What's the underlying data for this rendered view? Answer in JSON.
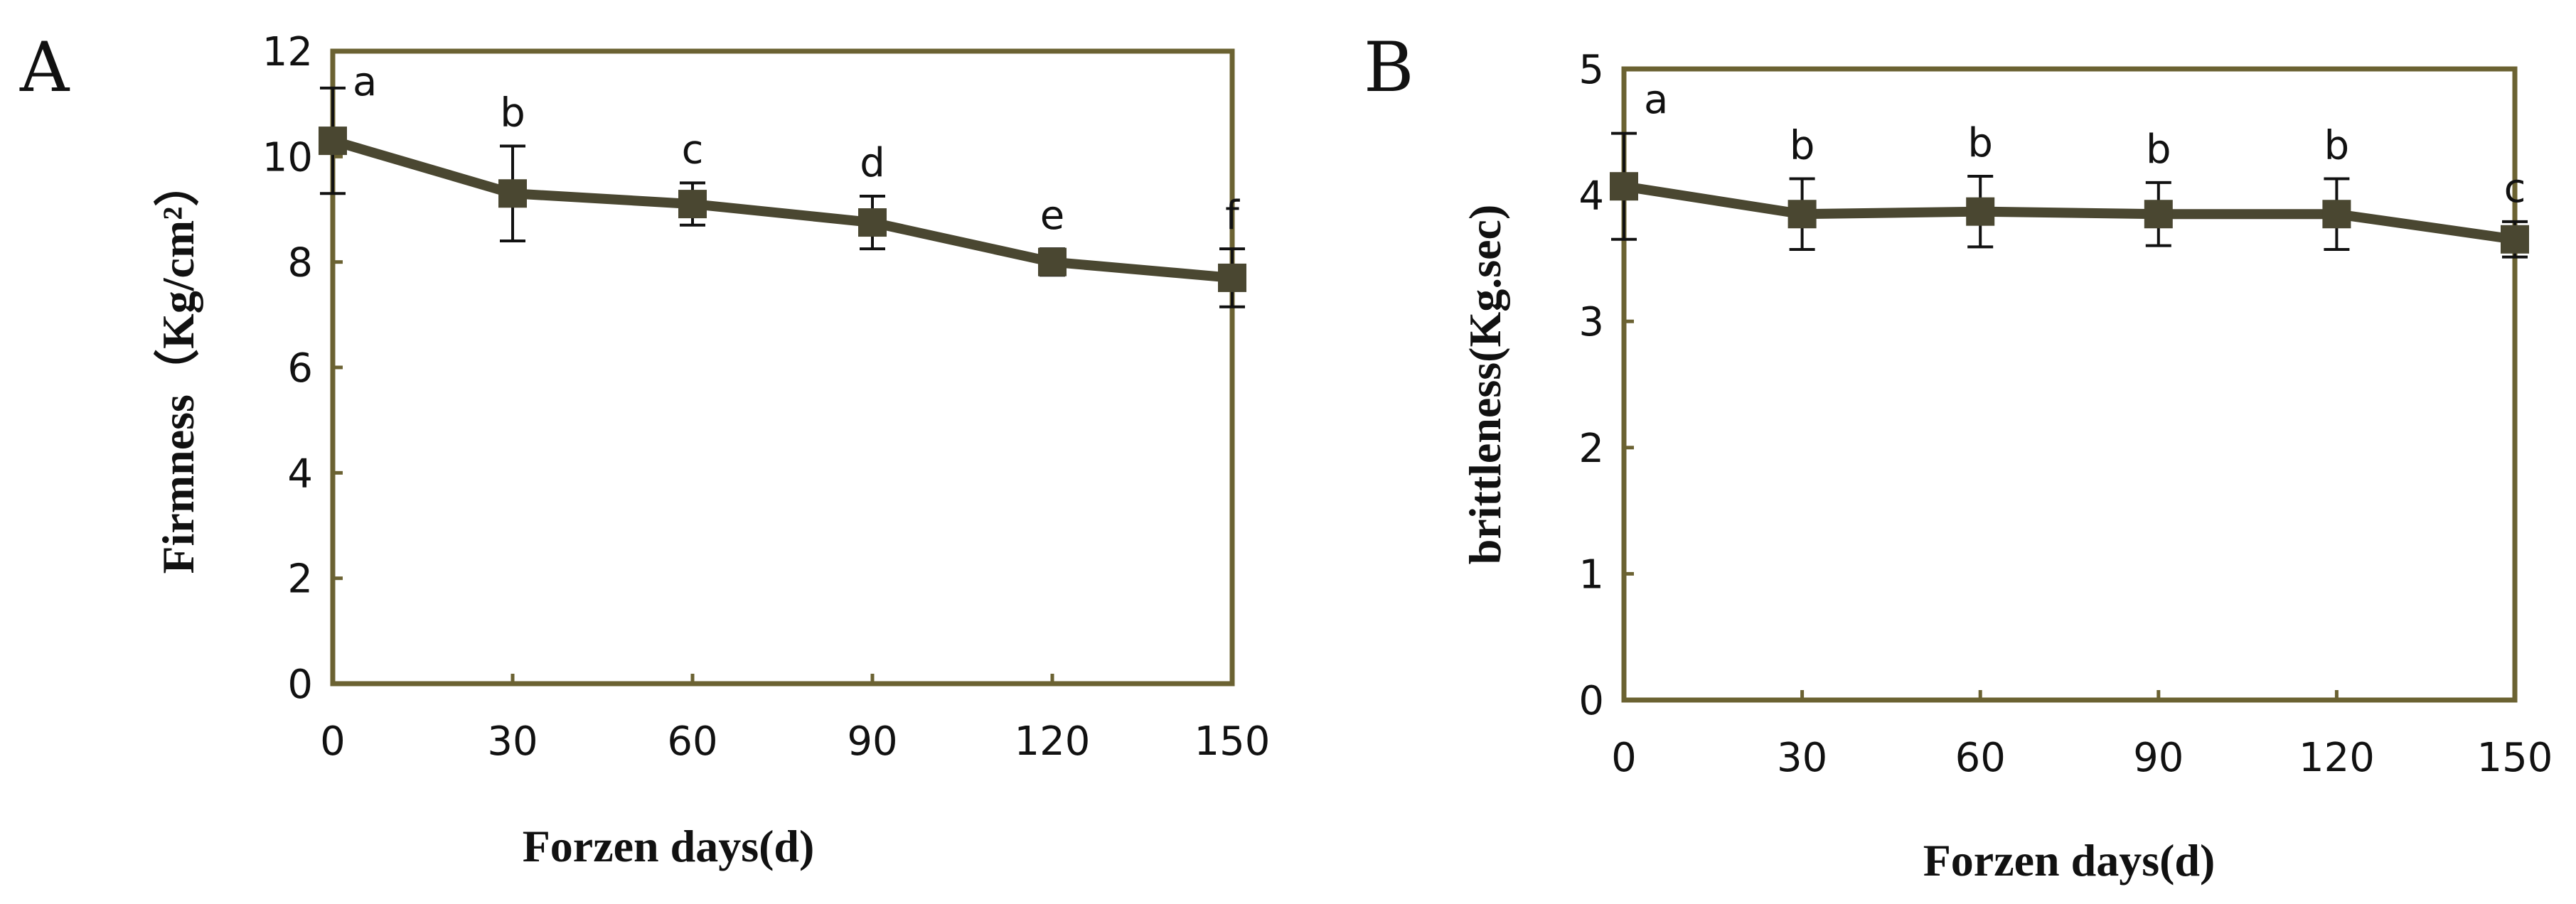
{
  "chart_data": [
    {
      "panel": "A",
      "type": "line",
      "x": [
        0,
        30,
        60,
        90,
        120,
        150
      ],
      "series": [
        {
          "values": [
            10.3,
            9.3,
            9.1,
            8.75,
            8.0,
            7.7
          ],
          "error": [
            1.0,
            0.9,
            0.4,
            0.5,
            0.25,
            0.55
          ],
          "sig_labels": [
            "a",
            "b",
            "c",
            "d",
            "e",
            "f"
          ]
        }
      ],
      "xlabel": "Forzen days(d)",
      "ylabel": "Firmness（Kg/cm²）",
      "xticks": [
        "0",
        "30",
        "60",
        "90",
        "120",
        "150"
      ],
      "yticks": [
        "0",
        "2",
        "4",
        "6",
        "8",
        "10",
        "12"
      ],
      "xlim": [
        0,
        150
      ],
      "ylim": [
        0,
        12
      ],
      "grid": false,
      "line_color": "#4a4731",
      "axis_color": "#6b6232"
    },
    {
      "panel": "B",
      "type": "line",
      "x": [
        0,
        30,
        60,
        90,
        120,
        150
      ],
      "series": [
        {
          "values": [
            4.07,
            3.85,
            3.87,
            3.85,
            3.85,
            3.65
          ],
          "error": [
            0.42,
            0.28,
            0.28,
            0.25,
            0.28,
            0.14
          ],
          "sig_labels": [
            "a",
            "b",
            "b",
            "b",
            "b",
            "c"
          ]
        }
      ],
      "xlabel": "Forzen days(d)",
      "ylabel": "brittleness(Kg.sec)",
      "xticks": [
        "0",
        "30",
        "60",
        "90",
        "120",
        "150"
      ],
      "yticks": [
        "0",
        "1",
        "2",
        "3",
        "4",
        "5"
      ],
      "xlim": [
        0,
        150
      ],
      "ylim": [
        0,
        5
      ],
      "grid": false,
      "line_color": "#4a4731",
      "axis_color": "#6b6232"
    }
  ]
}
